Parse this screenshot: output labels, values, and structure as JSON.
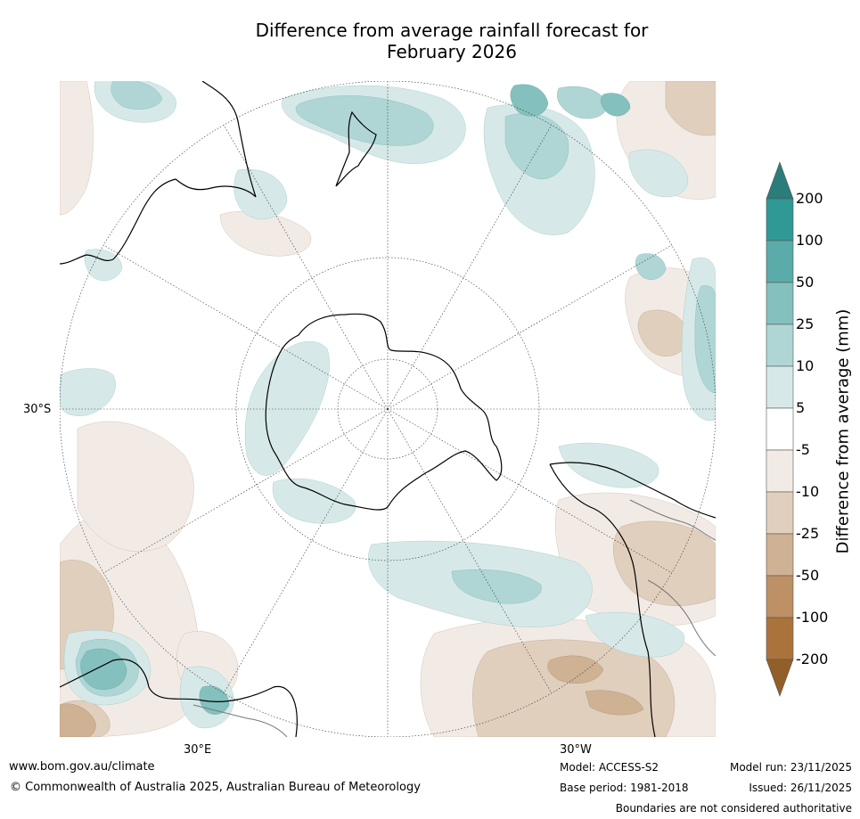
{
  "title": {
    "line1": "Difference from average rainfall forecast for",
    "line2": "February 2026"
  },
  "map": {
    "projection_labels": {
      "lat": "30°S",
      "lon_left": "30°E",
      "lon_right": "30°W"
    }
  },
  "colorbar": {
    "label": "Difference from average (mm)",
    "ticks": [
      "200",
      "100",
      "50",
      "25",
      "10",
      "5",
      "-5",
      "-10",
      "-25",
      "-50",
      "-100",
      "-200"
    ],
    "colors": {
      "wet_extreme": "#2a7d7b",
      "wet_200": "#2f9995",
      "wet_100": "#5aaba9",
      "wet_50": "#84c0be",
      "wet_25": "#afd6d4",
      "wet_10": "#d6e9e8",
      "neutral": "#ffffff",
      "dry_10": "#f2ebe5",
      "dry_25": "#e1cfbd",
      "dry_50": "#cfb194",
      "dry_100": "#bd9165",
      "dry_200": "#ab733c",
      "dry_extreme": "#935f28"
    }
  },
  "footer": {
    "website": "www.bom.gov.au/climate",
    "copyright": "© Commonwealth of Australia 2025, Australian Bureau of Meteorology",
    "model": "Model: ACCESS-S2",
    "base_period": "Base period: 1981-2018",
    "model_run": "Model run: 23/11/2025",
    "issued": "Issued: 26/11/2025",
    "disclaimer": "Boundaries are not considered authoritative"
  }
}
